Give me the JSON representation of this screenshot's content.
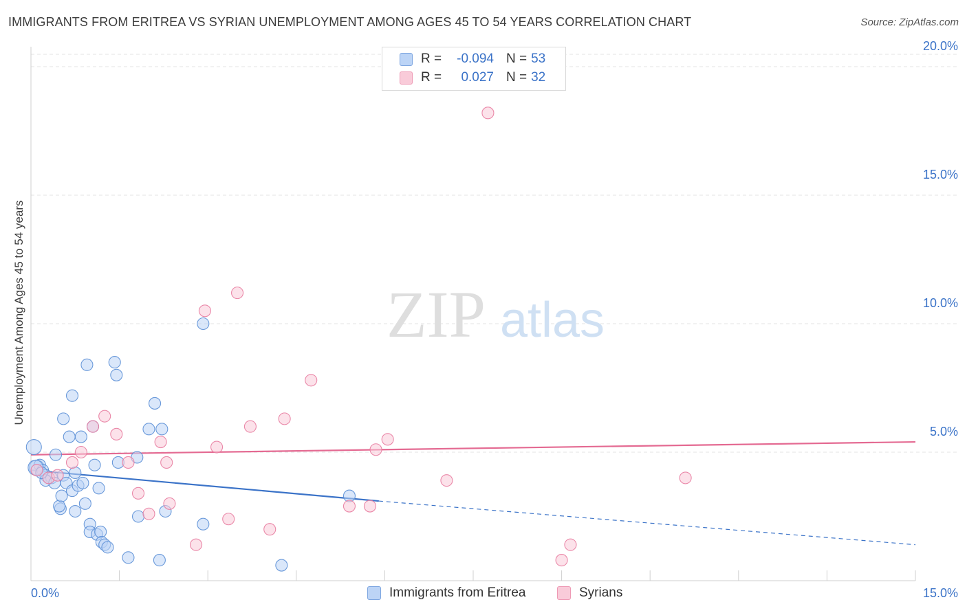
{
  "header": {
    "title": "IMMIGRANTS FROM ERITREA VS SYRIAN UNEMPLOYMENT AMONG AGES 45 TO 54 YEARS CORRELATION CHART",
    "source": "Source: ZipAtlas.com"
  },
  "watermark": {
    "zip": "ZIP",
    "atlas": "atlas"
  },
  "legend": {
    "rows": [
      {
        "r_label": "R =",
        "r_value": "-0.094",
        "n_label": "N =",
        "n_value": "53",
        "fill": "#bcd4f6",
        "stroke": "#7ea6e0"
      },
      {
        "r_label": "R =",
        "r_value": "0.027",
        "n_label": "N =",
        "n_value": "32",
        "fill": "#f9cbd9",
        "stroke": "#ee9ab5"
      }
    ]
  },
  "chart_data": {
    "type": "scatter",
    "title": "IMMIGRANTS FROM ERITREA VS SYRIAN UNEMPLOYMENT AMONG AGES 45 TO 54 YEARS CORRELATION CHART",
    "xlabel": "",
    "ylabel": "Unemployment Among Ages 45 to 54 years",
    "xlim": [
      0,
      15
    ],
    "ylim": [
      0,
      20
    ],
    "x_tick_labels": {
      "left": "0.0%",
      "right": "15.0%"
    },
    "y_ticks": [
      {
        "value": 5,
        "label": "5.0%"
      },
      {
        "value": 10,
        "label": "10.0%"
      },
      {
        "value": 15,
        "label": "15.0%"
      },
      {
        "value": 20,
        "label": "20.0%"
      }
    ],
    "series": [
      {
        "name": "Immigrants from Eritrea",
        "color": "#5b8fd6",
        "fill": "#bcd4f6",
        "trend": {
          "x0": 0,
          "y0": 4.3,
          "x1": 5.9,
          "y1": 3.1,
          "dash_x1": 15,
          "dash_y1": 1.4,
          "color": "#3b73c8"
        },
        "points": [
          [
            0.05,
            5.2
          ],
          [
            0.1,
            4.4
          ],
          [
            0.15,
            4.5
          ],
          [
            0.2,
            4.3
          ],
          [
            0.25,
            4.1
          ],
          [
            0.3,
            4.0
          ],
          [
            0.35,
            4.0
          ],
          [
            0.25,
            3.9
          ],
          [
            0.4,
            3.8
          ],
          [
            0.42,
            4.9
          ],
          [
            0.55,
            4.1
          ],
          [
            0.6,
            3.8
          ],
          [
            0.7,
            3.5
          ],
          [
            0.75,
            2.7
          ],
          [
            0.5,
            2.8
          ],
          [
            0.48,
            2.9
          ],
          [
            0.52,
            3.3
          ],
          [
            0.55,
            6.3
          ],
          [
            0.65,
            5.6
          ],
          [
            0.7,
            7.2
          ],
          [
            0.75,
            4.2
          ],
          [
            0.8,
            3.7
          ],
          [
            0.85,
            5.6
          ],
          [
            0.88,
            3.8
          ],
          [
            0.92,
            3.0
          ],
          [
            0.95,
            8.4
          ],
          [
            1.0,
            2.2
          ],
          [
            1.0,
            1.9
          ],
          [
            1.05,
            6.0
          ],
          [
            1.08,
            4.5
          ],
          [
            1.12,
            1.8
          ],
          [
            1.15,
            3.6
          ],
          [
            1.18,
            1.9
          ],
          [
            1.2,
            1.5
          ],
          [
            1.25,
            1.4
          ],
          [
            1.3,
            1.3
          ],
          [
            1.42,
            8.5
          ],
          [
            1.45,
            8.0
          ],
          [
            1.48,
            4.6
          ],
          [
            1.65,
            0.9
          ],
          [
            1.8,
            4.8
          ],
          [
            1.82,
            2.5
          ],
          [
            2.0,
            5.9
          ],
          [
            2.1,
            6.9
          ],
          [
            2.18,
            0.8
          ],
          [
            2.22,
            5.9
          ],
          [
            2.28,
            2.7
          ],
          [
            2.92,
            10.0
          ],
          [
            2.92,
            2.2
          ],
          [
            4.25,
            0.6
          ],
          [
            5.4,
            3.3
          ],
          [
            0.08,
            4.4
          ],
          [
            0.18,
            4.2
          ]
        ]
      },
      {
        "name": "Syrians",
        "color": "#e87ca0",
        "fill": "#f9cbd9",
        "trend": {
          "x0": 0,
          "y0": 4.9,
          "x1": 15,
          "y1": 5.4,
          "color": "#e46a92"
        },
        "points": [
          [
            0.1,
            4.3
          ],
          [
            0.3,
            4.0
          ],
          [
            0.45,
            4.1
          ],
          [
            0.7,
            4.6
          ],
          [
            0.85,
            5.0
          ],
          [
            1.05,
            6.0
          ],
          [
            1.25,
            6.4
          ],
          [
            1.45,
            5.7
          ],
          [
            1.65,
            4.6
          ],
          [
            1.82,
            3.4
          ],
          [
            2.0,
            2.6
          ],
          [
            2.2,
            5.4
          ],
          [
            2.3,
            4.6
          ],
          [
            2.35,
            3.0
          ],
          [
            2.8,
            1.4
          ],
          [
            2.95,
            10.5
          ],
          [
            3.15,
            5.2
          ],
          [
            3.35,
            2.4
          ],
          [
            3.5,
            11.2
          ],
          [
            3.72,
            6.0
          ],
          [
            4.05,
            2.0
          ],
          [
            4.3,
            6.3
          ],
          [
            4.75,
            7.8
          ],
          [
            5.4,
            2.9
          ],
          [
            5.75,
            2.9
          ],
          [
            5.85,
            5.1
          ],
          [
            6.05,
            5.5
          ],
          [
            7.05,
            3.9
          ],
          [
            7.75,
            18.2
          ],
          [
            9.0,
            0.8
          ],
          [
            9.15,
            1.4
          ],
          [
            11.1,
            4.0
          ]
        ]
      }
    ]
  }
}
